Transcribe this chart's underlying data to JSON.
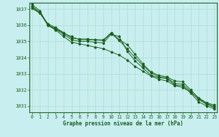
{
  "title": "Graphe pression niveau de la mer (hPa)",
  "background_color": "#c8eef0",
  "grid_color": "#aaddcc",
  "line_color": "#1a5e1a",
  "text_color": "#1a5e1a",
  "ylim": [
    1030.6,
    1037.4
  ],
  "xlim": [
    -0.3,
    23.3
  ],
  "yticks": [
    1031,
    1032,
    1033,
    1034,
    1035,
    1036,
    1037
  ],
  "xticks": [
    0,
    1,
    2,
    3,
    4,
    5,
    6,
    7,
    8,
    9,
    10,
    11,
    12,
    13,
    14,
    15,
    16,
    17,
    18,
    19,
    20,
    21,
    22,
    23
  ],
  "series": [
    [
      1037.2,
      1036.8,
      1036.0,
      1035.8,
      1035.5,
      1035.3,
      1035.1,
      1035.1,
      1035.1,
      1035.1,
      1035.55,
      1035.1,
      1034.8,
      1034.2,
      1033.6,
      1033.1,
      1032.9,
      1032.8,
      1032.55,
      1032.5,
      1032.0,
      1031.5,
      1031.2,
      1031.05
    ],
    [
      1037.1,
      1036.8,
      1036.1,
      1035.85,
      1035.55,
      1035.2,
      1035.15,
      1035.15,
      1035.1,
      1035.05,
      1035.5,
      1035.05,
      1034.55,
      1034.0,
      1033.5,
      1033.05,
      1032.8,
      1032.75,
      1032.4,
      1032.35,
      1031.9,
      1031.4,
      1031.1,
      1030.9
    ],
    [
      1037.05,
      1036.75,
      1036.05,
      1035.75,
      1035.45,
      1035.1,
      1035.0,
      1035.0,
      1034.95,
      1034.9,
      1035.45,
      1035.3,
      1034.4,
      1033.8,
      1033.35,
      1032.9,
      1032.75,
      1032.7,
      1032.3,
      1032.25,
      1031.8,
      1031.25,
      1031.0,
      1030.82
    ],
    [
      1037.3,
      1036.9,
      1036.0,
      1035.7,
      1035.3,
      1034.95,
      1034.85,
      1034.75,
      1034.65,
      1034.55,
      1034.35,
      1034.15,
      1033.85,
      1033.45,
      1033.15,
      1032.85,
      1032.65,
      1032.55,
      1032.25,
      1032.15,
      1031.85,
      1031.45,
      1031.15,
      1030.97
    ]
  ]
}
